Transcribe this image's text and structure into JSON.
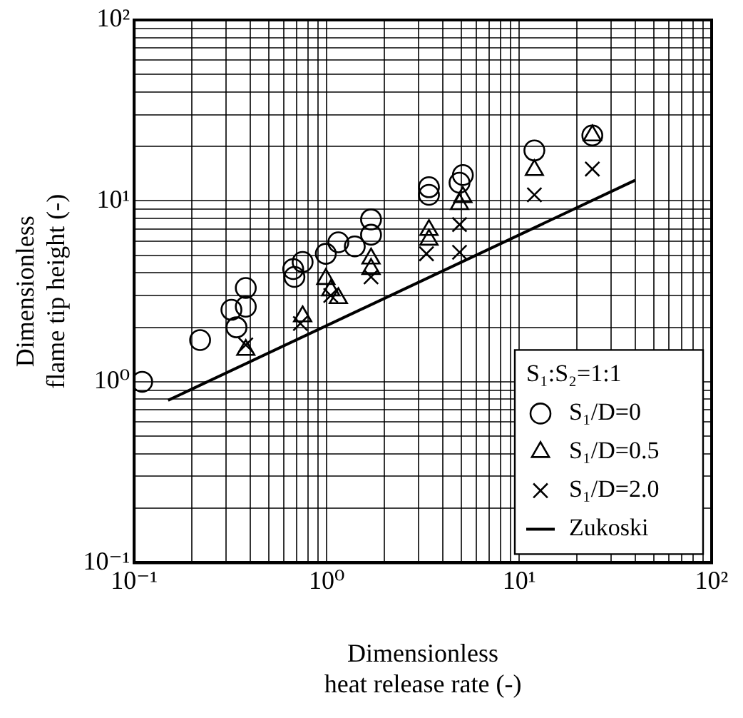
{
  "chart_data": {
    "type": "scatter",
    "xlabel": "Dimensionless\nheat release rate (-)",
    "ylabel": "Dimensionless\nflame tip height (-)",
    "legend_title": "S₁:S₂=1:1",
    "log": "xy",
    "grid": true,
    "legend": "bottom right",
    "xlim": [
      0.1,
      100
    ],
    "ylim": [
      0.1,
      100
    ],
    "xticks": [
      {
        "value": 0.1,
        "label": "10⁻¹"
      },
      {
        "value": 0.2,
        "label": null
      },
      {
        "value": 0.3,
        "label": null
      },
      {
        "value": 0.4,
        "label": null
      },
      {
        "value": 0.5,
        "label": null
      },
      {
        "value": 0.6,
        "label": null
      },
      {
        "value": 0.7,
        "label": null
      },
      {
        "value": 0.8,
        "label": null
      },
      {
        "value": 0.9,
        "label": null
      },
      {
        "value": 1,
        "label": "10⁰"
      },
      {
        "value": 2,
        "label": null
      },
      {
        "value": 3,
        "label": null
      },
      {
        "value": 4,
        "label": null
      },
      {
        "value": 5,
        "label": null
      },
      {
        "value": 6,
        "label": null
      },
      {
        "value": 7,
        "label": null
      },
      {
        "value": 8,
        "label": null
      },
      {
        "value": 9,
        "label": null
      },
      {
        "value": 10,
        "label": "10¹"
      },
      {
        "value": 20,
        "label": null
      },
      {
        "value": 30,
        "label": null
      },
      {
        "value": 40,
        "label": null
      },
      {
        "value": 50,
        "label": null
      },
      {
        "value": 60,
        "label": null
      },
      {
        "value": 70,
        "label": null
      },
      {
        "value": 80,
        "label": null
      },
      {
        "value": 90,
        "label": null
      },
      {
        "value": 100,
        "label": "10²"
      }
    ],
    "yticks": [
      {
        "value": 0.1,
        "label": "10⁻¹"
      },
      {
        "value": 0.2,
        "label": null
      },
      {
        "value": 0.3,
        "label": null
      },
      {
        "value": 0.4,
        "label": null
      },
      {
        "value": 0.5,
        "label": null
      },
      {
        "value": 0.6,
        "label": null
      },
      {
        "value": 0.7,
        "label": null
      },
      {
        "value": 0.8,
        "label": null
      },
      {
        "value": 0.9,
        "label": null
      },
      {
        "value": 1,
        "label": "10⁰"
      },
      {
        "value": 2,
        "label": null
      },
      {
        "value": 3,
        "label": null
      },
      {
        "value": 4,
        "label": null
      },
      {
        "value": 5,
        "label": null
      },
      {
        "value": 6,
        "label": null
      },
      {
        "value": 7,
        "label": null
      },
      {
        "value": 8,
        "label": null
      },
      {
        "value": 9,
        "label": null
      },
      {
        "value": 10,
        "label": "10¹"
      },
      {
        "value": 20,
        "label": null
      },
      {
        "value": 30,
        "label": null
      },
      {
        "value": 40,
        "label": null
      },
      {
        "value": 50,
        "label": null
      },
      {
        "value": 60,
        "label": null
      },
      {
        "value": 70,
        "label": null
      },
      {
        "value": 80,
        "label": null
      },
      {
        "value": 90,
        "label": null
      },
      {
        "value": 100,
        "label": "10²"
      }
    ],
    "series": [
      {
        "name": "S₁/D=0",
        "color": "#000000",
        "marker": "circle",
        "x": [
          0.11,
          0.22,
          0.34,
          0.32,
          0.38,
          0.38,
          0.68,
          0.67,
          0.75,
          0.99,
          1.15,
          1.4,
          1.7,
          1.7,
          3.4,
          3.4,
          4.9,
          5.1,
          12,
          24
        ],
        "values": [
          1.0,
          1.7,
          2.0,
          2.5,
          2.6,
          3.3,
          3.8,
          4.2,
          4.6,
          5.1,
          5.9,
          5.6,
          6.5,
          7.9,
          10.8,
          11.9,
          12.6,
          13.9,
          19,
          23
        ]
      },
      {
        "name": "S₁/D=0.5",
        "color": "#000000",
        "marker": "triangle",
        "x": [
          0.38,
          0.75,
          0.99,
          1.05,
          1.15,
          1.7,
          1.7,
          3.4,
          3.4,
          4.9,
          5.1,
          12,
          24
        ],
        "values": [
          1.5,
          2.3,
          3.7,
          3.2,
          2.9,
          4.2,
          4.8,
          6.1,
          6.9,
          9.6,
          10.5,
          14.8,
          23
        ]
      },
      {
        "name": "S₁/D=2.0",
        "color": "#000000",
        "marker": "cross",
        "x": [
          0.38,
          0.73,
          1.05,
          1.7,
          3.3,
          4.9,
          4.9,
          12,
          24
        ],
        "values": [
          1.6,
          2.1,
          3.0,
          3.8,
          5.1,
          5.2,
          7.4,
          10.8,
          15
        ]
      },
      {
        "name": "Zukoski",
        "type": "line",
        "color": "#000000",
        "marker": "none",
        "line_style": "solid",
        "x": [
          0.15,
          40
        ],
        "values": [
          0.79,
          13
        ]
      }
    ]
  }
}
